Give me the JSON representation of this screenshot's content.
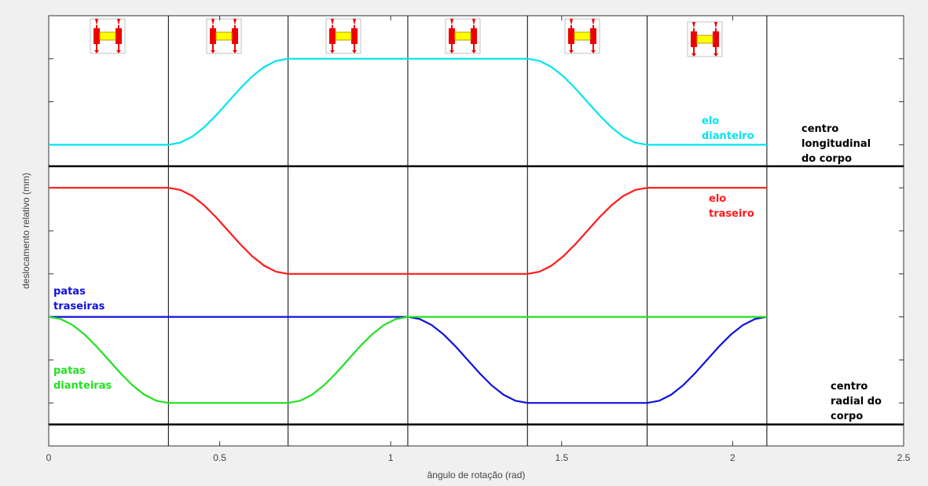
{
  "chart_data": {
    "type": "line",
    "x_label": "ângulo de rotação (rad)",
    "y_label": "deslocamento relativo (mm)",
    "xlim": [
      0,
      2.5
    ],
    "xticks": [
      0,
      0.5,
      1,
      1.5,
      2,
      2.5
    ],
    "ylim": [
      0,
      10
    ],
    "yticks": [
      1,
      2,
      3,
      4,
      5,
      6,
      7,
      8,
      9
    ],
    "vlines": [
      0.35,
      0.7,
      1.05,
      1.4,
      1.75,
      2.1
    ],
    "reference_lines": [
      {
        "y": 6.5,
        "label": "centro longitudinal do corpo",
        "color": "#000000"
      },
      {
        "y": 0.5,
        "label": "centro radial do corpo",
        "color": "#000000"
      }
    ],
    "x": [
      0,
      0.035,
      0.07,
      0.105,
      0.14,
      0.175,
      0.21,
      0.245,
      0.28,
      0.315,
      0.35,
      0.385,
      0.42,
      0.455,
      0.49,
      0.525,
      0.56,
      0.595,
      0.63,
      0.665,
      0.7,
      0.735,
      0.77,
      0.805,
      0.84,
      0.875,
      0.91,
      0.945,
      0.98,
      1.015,
      1.05,
      1.085,
      1.12,
      1.155,
      1.19,
      1.225,
      1.26,
      1.295,
      1.33,
      1.365,
      1.4,
      1.435,
      1.47,
      1.505,
      1.54,
      1.575,
      1.61,
      1.645,
      1.68,
      1.715,
      1.75,
      1.785,
      1.82,
      1.855,
      1.89,
      1.925,
      1.96,
      1.995,
      2.03,
      2.065,
      2.1
    ],
    "series": [
      {
        "name": "elo dianteiro",
        "color": "#00e5ee",
        "values": [
          7,
          7,
          7,
          7,
          7,
          7,
          7,
          7,
          7,
          7,
          7,
          7.05,
          7.19,
          7.41,
          7.69,
          8,
          8.31,
          8.59,
          8.81,
          8.95,
          9,
          9,
          9,
          9,
          9,
          9,
          9,
          9,
          9,
          9,
          9,
          9,
          9,
          9,
          9,
          9,
          9,
          9,
          9,
          9,
          9,
          8.95,
          8.81,
          8.59,
          8.31,
          8,
          7.69,
          7.41,
          7.19,
          7.05,
          7,
          7,
          7,
          7,
          7,
          7,
          7,
          7,
          7,
          7,
          7
        ]
      },
      {
        "name": "elo traseiro",
        "color": "#ff1a1a",
        "values": [
          6,
          6,
          6,
          6,
          6,
          6,
          6,
          6,
          6,
          6,
          6,
          5.95,
          5.81,
          5.59,
          5.31,
          5,
          4.69,
          4.41,
          4.19,
          4.05,
          4,
          4,
          4,
          4,
          4,
          4,
          4,
          4,
          4,
          4,
          4,
          4,
          4,
          4,
          4,
          4,
          4,
          4,
          4,
          4,
          4,
          4.05,
          4.19,
          4.41,
          4.69,
          5,
          5.31,
          5.59,
          5.81,
          5.95,
          6,
          6,
          6,
          6,
          6,
          6,
          6,
          6,
          6,
          6,
          6
        ]
      },
      {
        "name": "patas traseiras",
        "color": "#1010e0",
        "values": [
          3,
          3,
          3,
          3,
          3,
          3,
          3,
          3,
          3,
          3,
          3,
          3,
          3,
          3,
          3,
          3,
          3,
          3,
          3,
          3,
          3,
          3,
          3,
          3,
          3,
          3,
          3,
          3,
          3,
          3,
          3,
          2.95,
          2.81,
          2.59,
          2.31,
          2,
          1.69,
          1.41,
          1.19,
          1.05,
          1,
          1,
          1,
          1,
          1,
          1,
          1,
          1,
          1,
          1,
          1,
          1.05,
          1.19,
          1.41,
          1.69,
          2,
          2.31,
          2.59,
          2.81,
          2.95,
          3
        ]
      },
      {
        "name": "patas dianteiras",
        "color": "#22e022",
        "values": [
          3,
          2.95,
          2.81,
          2.59,
          2.31,
          2,
          1.69,
          1.41,
          1.19,
          1.05,
          1,
          1,
          1,
          1,
          1,
          1,
          1,
          1,
          1,
          1,
          1,
          1.05,
          1.19,
          1.41,
          1.69,
          2,
          2.31,
          2.59,
          2.81,
          2.95,
          3,
          3,
          3,
          3,
          3,
          3,
          3,
          3,
          3,
          3,
          3,
          3,
          3,
          3,
          3,
          3,
          3,
          3,
          3,
          3,
          3,
          3,
          3,
          3,
          3,
          3,
          3,
          3,
          3,
          3,
          3
        ]
      }
    ]
  }
}
